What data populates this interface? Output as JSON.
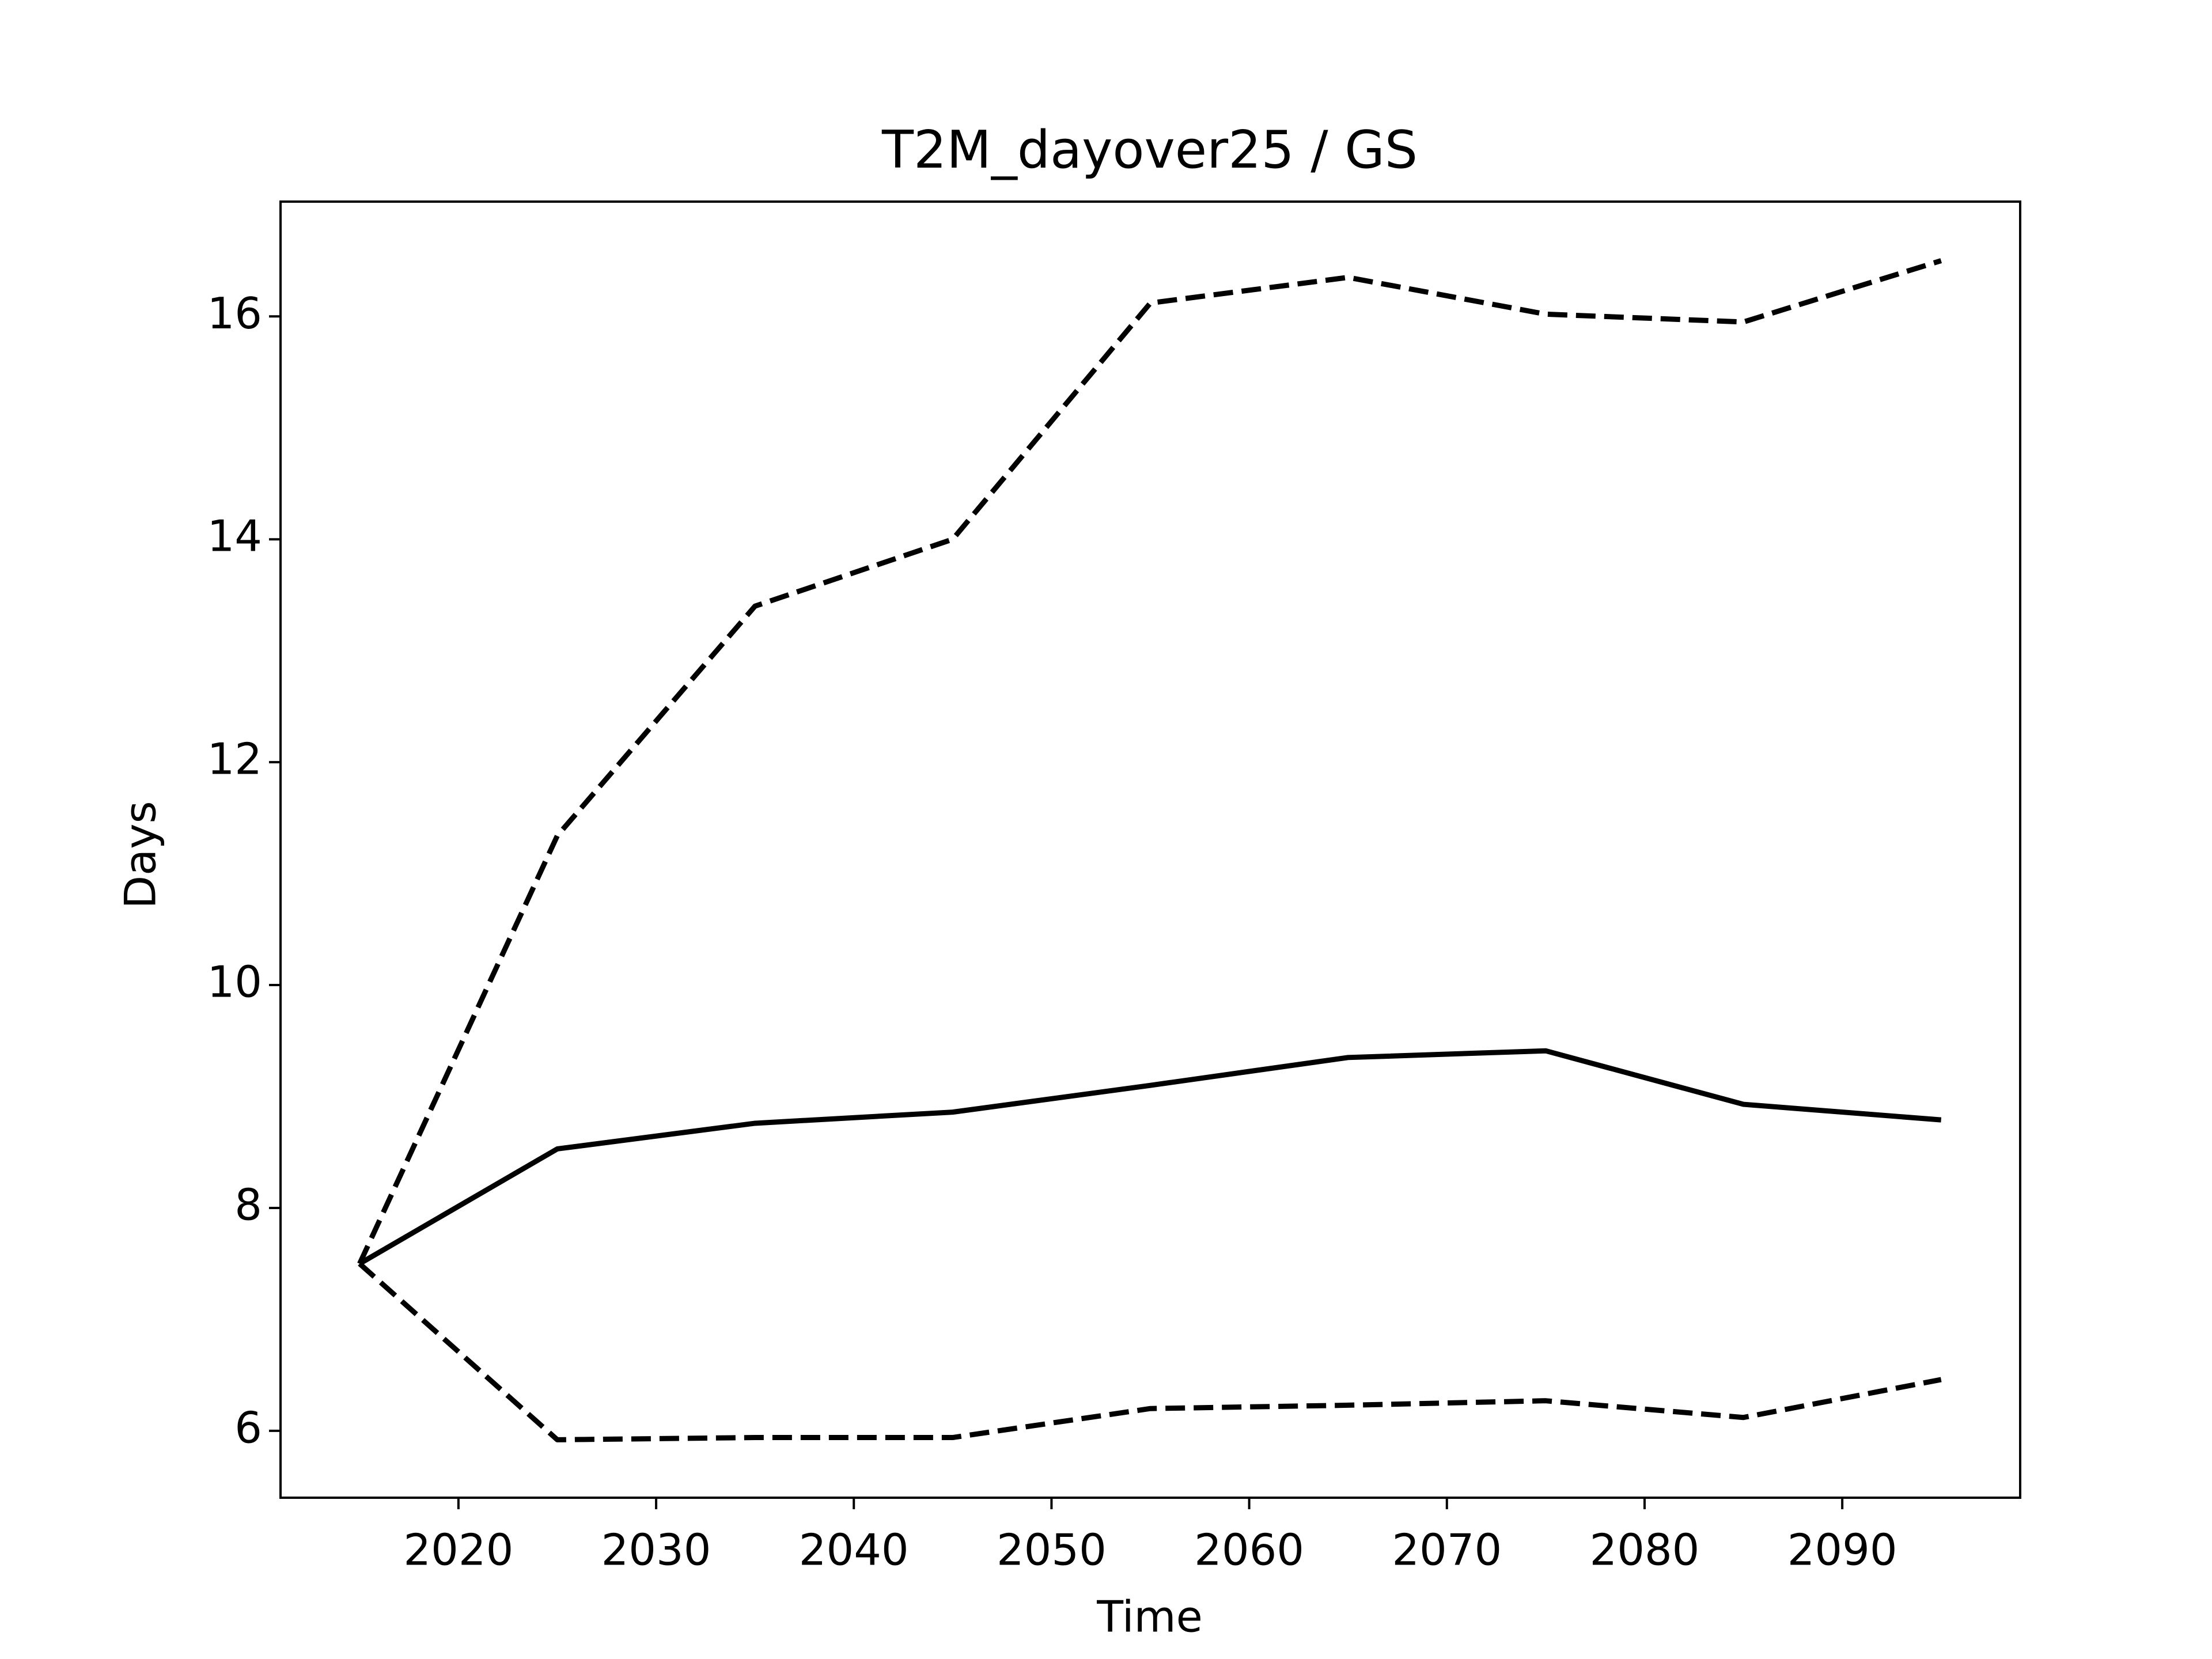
{
  "chart_data": {
    "type": "line",
    "title": "T2M_dayover25 / GS",
    "xlabel": "Time",
    "ylabel": "Days",
    "x": [
      2015,
      2025,
      2035,
      2045,
      2055,
      2065,
      2075,
      2085,
      2095
    ],
    "series": [
      {
        "color": "#000000",
        "linestyle": "solid",
        "values": [
          7.5,
          8.53,
          8.76,
          8.86,
          9.1,
          9.35,
          9.41,
          8.93,
          8.79
        ]
      },
      {
        "color": "#000000",
        "linestyle": "dashed",
        "values": [
          7.5,
          11.34,
          13.4,
          14.0,
          16.12,
          16.35,
          16.02,
          15.95,
          16.5
        ]
      },
      {
        "color": "#000000",
        "linestyle": "dashed",
        "values": [
          7.5,
          5.92,
          5.94,
          5.94,
          6.2,
          6.23,
          6.27,
          6.12,
          6.46
        ]
      }
    ],
    "xlim": [
      2011,
      2099
    ],
    "xticks": [
      2020,
      2030,
      2040,
      2050,
      2060,
      2070,
      2080,
      2090
    ],
    "ylim": [
      5.4,
      17.03
    ],
    "yticks": [
      6,
      8,
      10,
      12,
      14,
      16
    ],
    "grid": false
  }
}
